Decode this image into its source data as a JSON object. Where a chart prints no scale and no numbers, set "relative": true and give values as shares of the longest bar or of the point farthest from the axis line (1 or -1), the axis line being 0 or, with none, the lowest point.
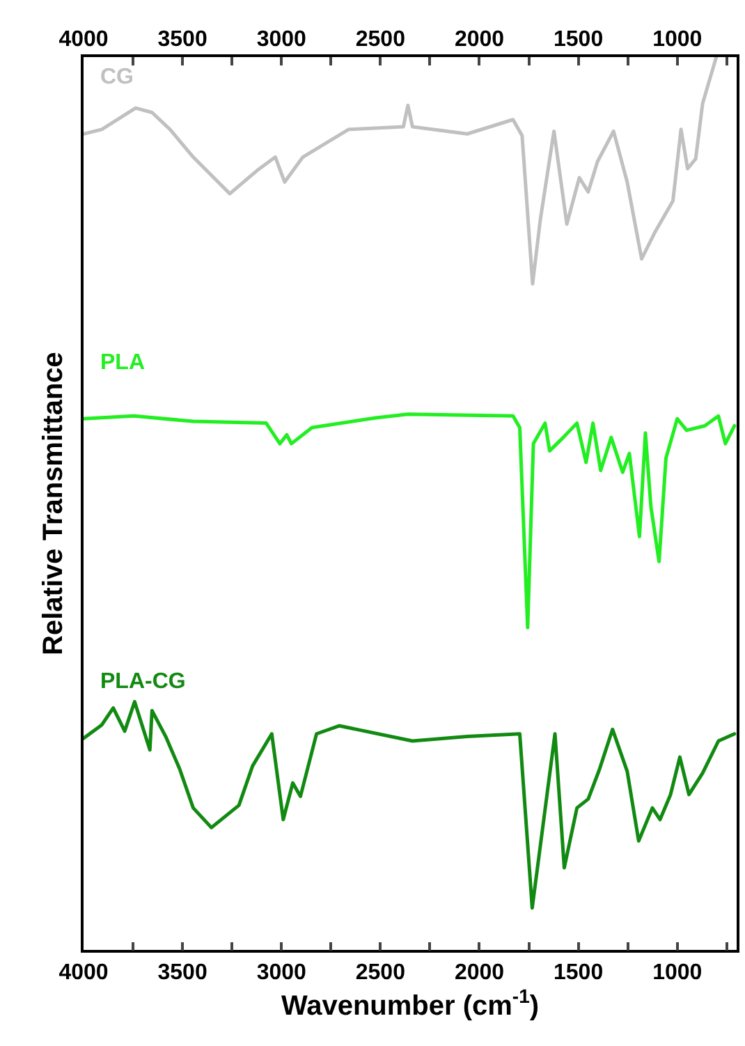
{
  "chart_data": {
    "type": "line",
    "relative": true,
    "xlabel": "Wavenumber (cm$^{-1}$)",
    "ylabel": "Relative Transmittance",
    "xlim": [
      4000,
      700
    ],
    "x2lim": [
      4000,
      700
    ],
    "xticks": [
      4000,
      {
        "value": 3750,
        "label": null
      },
      3500,
      {
        "value": 3250,
        "label": null
      },
      3000,
      {
        "value": 2750,
        "label": null
      },
      2500,
      {
        "value": 2250,
        "label": null
      },
      2000,
      {
        "value": 1750,
        "label": null
      },
      1500,
      {
        "value": 1250,
        "label": null
      },
      1000,
      {
        "value": 750,
        "label": null
      }
    ],
    "x2ticks": [
      4000,
      {
        "value": 3750,
        "label": null
      },
      3500,
      {
        "value": 3250,
        "label": null
      },
      3000,
      {
        "value": 2750,
        "label": null
      },
      2500,
      {
        "value": 2250,
        "label": null
      },
      2000,
      {
        "value": 1750,
        "label": null
      },
      1500,
      {
        "value": 1250,
        "label": null
      },
      1000,
      {
        "value": 750,
        "label": null
      }
    ],
    "tick_labels": "x",
    "legend": false,
    "marker": "none",
    "line_style": "solid",
    "series": [
      {
        "name": "CG",
        "color": "#c0c0c0",
        "x": [
          4000,
          3908,
          3737,
          3654,
          3563,
          3446,
          3261,
          3123,
          3031,
          2984,
          2892,
          2661,
          2384,
          2361,
          2338,
          2061,
          1830,
          1784,
          1731,
          1692,
          1623,
          1558,
          1495,
          1450,
          1403,
          1322,
          1253,
          1180,
          1115,
          1022,
          981,
          948,
          907,
          872,
          803
        ],
        "values": [
          0.914,
          0.919,
          0.943,
          0.938,
          0.919,
          0.888,
          0.847,
          0.873,
          0.888,
          0.86,
          0.888,
          0.919,
          0.922,
          0.946,
          0.922,
          0.914,
          0.93,
          0.912,
          0.746,
          0.818,
          0.917,
          0.813,
          0.865,
          0.849,
          0.883,
          0.917,
          0.86,
          0.774,
          0.803,
          0.839,
          0.919,
          0.875,
          0.886,
          0.948,
          1.0
        ]
      },
      {
        "name": "PLA",
        "color": "#22ee22",
        "x": [
          4000,
          3746,
          3446,
          3077,
          3008,
          2973,
          2950,
          2846,
          2523,
          2361,
          1830,
          1796,
          1756,
          1727,
          1668,
          1645,
          1576,
          1507,
          1461,
          1426,
          1387,
          1334,
          1276,
          1242,
          1191,
          1161,
          1133,
          1092,
          1057,
          1000,
          953,
          861,
          792,
          757,
          711
        ],
        "values": [
          0.595,
          0.598,
          0.592,
          0.59,
          0.567,
          0.577,
          0.567,
          0.585,
          0.596,
          0.6,
          0.598,
          0.585,
          0.361,
          0.567,
          0.59,
          0.559,
          0.574,
          0.59,
          0.546,
          0.59,
          0.537,
          0.574,
          0.535,
          0.556,
          0.463,
          0.579,
          0.496,
          0.435,
          0.551,
          0.595,
          0.582,
          0.587,
          0.598,
          0.567,
          0.587
        ]
      },
      {
        "name": "PLA-CG",
        "color": "#128a12",
        "x": [
          4000,
          3908,
          3850,
          3792,
          3742,
          3665,
          3654,
          3585,
          3515,
          3446,
          3354,
          3215,
          3146,
          3049,
          2991,
          2943,
          2904,
          2823,
          2707,
          2338,
          2061,
          1796,
          1733,
          1618,
          1571,
          1507,
          1450,
          1392,
          1327,
          1253,
          1195,
          1126,
          1087,
          1034,
          987,
          941,
          872,
          792,
          711
        ],
        "values": [
          0.237,
          0.252,
          0.271,
          0.245,
          0.278,
          0.224,
          0.268,
          0.239,
          0.203,
          0.159,
          0.137,
          0.162,
          0.206,
          0.242,
          0.146,
          0.187,
          0.172,
          0.242,
          0.251,
          0.234,
          0.239,
          0.242,
          0.047,
          0.242,
          0.092,
          0.159,
          0.169,
          0.203,
          0.247,
          0.2,
          0.122,
          0.159,
          0.146,
          0.174,
          0.216,
          0.174,
          0.198,
          0.234,
          0.242
        ]
      }
    ]
  }
}
